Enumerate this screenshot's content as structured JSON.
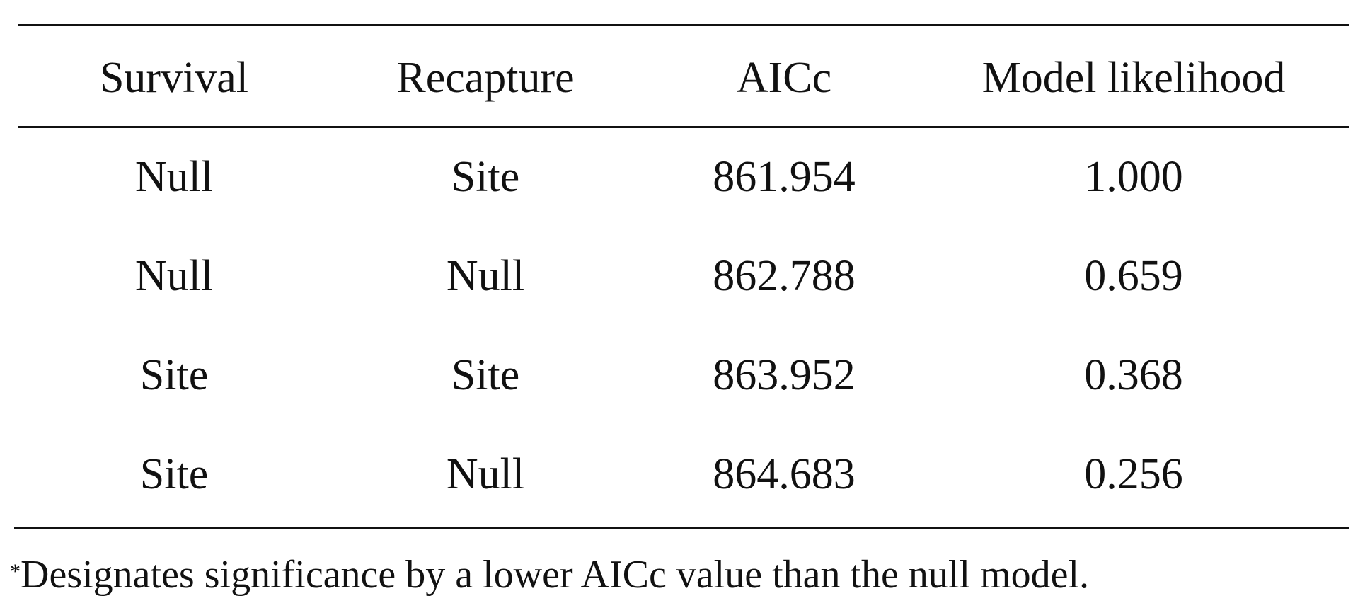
{
  "table": {
    "headers": [
      "Survival",
      "Recapture",
      "AICc",
      "Model likelihood"
    ],
    "rows": [
      [
        "Null",
        "Site",
        "861.954",
        "1.000"
      ],
      [
        "Null",
        "Null",
        "862.788",
        "0.659"
      ],
      [
        "Site",
        "Site",
        "863.952",
        "0.368"
      ],
      [
        "Site",
        "Null",
        "864.683",
        "0.256"
      ]
    ]
  },
  "footnote": {
    "marker": "*",
    "text": "Designates significance by a lower AICc value than the null model."
  }
}
